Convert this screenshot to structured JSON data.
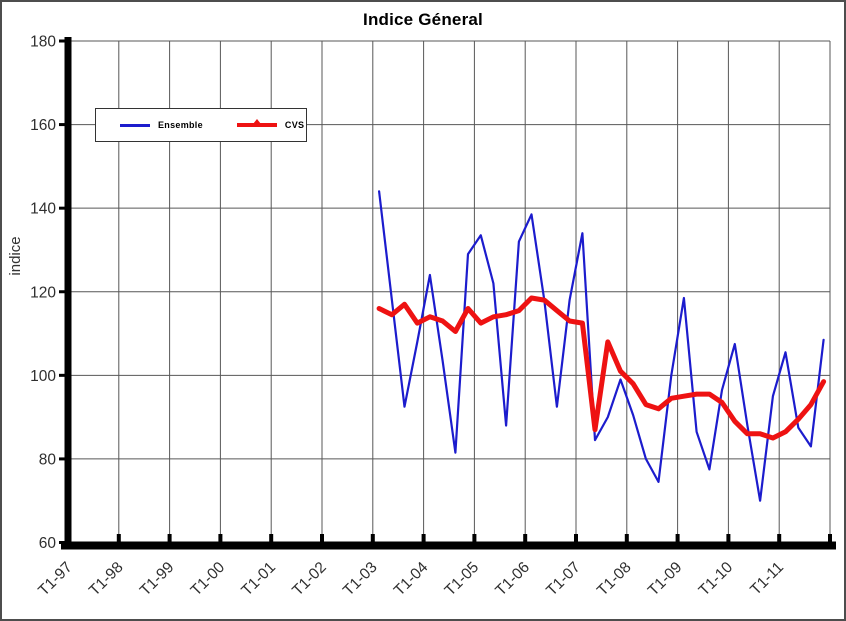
{
  "page": {
    "title": "Indice Géneral"
  },
  "chart_data": {
    "type": "line",
    "title": "Indice Géneral",
    "ylabel": "indice",
    "ylim": [
      60,
      180
    ],
    "y_ticks": [
      180,
      160,
      140,
      120,
      100,
      80,
      60
    ],
    "x_axis_labels": [
      "T1-97",
      "T1-98",
      "T1-99",
      "T1-00",
      "T1-01",
      "T1-02",
      "T1-03",
      "T1-04",
      "T1-05",
      "T1-06",
      "T1-07",
      "T1-08",
      "T1-09",
      "T1-10",
      "T1-11"
    ],
    "x_total_quarters": 60,
    "series_start_quarter": 24,
    "categories": [
      "T1-03",
      "T2-03",
      "T3-03",
      "T4-03",
      "T1-04",
      "T2-04",
      "T3-04",
      "T4-04",
      "T1-05",
      "T2-05",
      "T3-05",
      "T4-05",
      "T1-06",
      "T2-06",
      "T3-06",
      "T4-06",
      "T1-07",
      "T2-07",
      "T3-07",
      "T4-07",
      "T1-08",
      "T2-08",
      "T3-08",
      "T4-08",
      "T1-09",
      "T2-09",
      "T3-09",
      "T4-09",
      "T1-10",
      "T2-10",
      "T3-10",
      "T4-10",
      "T1-11",
      "T2-11",
      "T3-11",
      "T4-11"
    ],
    "series": [
      {
        "name": "Ensemble",
        "color": "#1c1ccd",
        "stroke_width": 2.2,
        "values": [
          144,
          118,
          92.5,
          108,
          124,
          103.5,
          81.5,
          129,
          133.5,
          122,
          88,
          132,
          138.5,
          118,
          92.5,
          118,
          134,
          84.5,
          90,
          99,
          90.5,
          80,
          74.5,
          100,
          118.5,
          86.5,
          77.5,
          96.5,
          107.5,
          88,
          70,
          95,
          105.5,
          87.5,
          83,
          108.5
        ]
      },
      {
        "name": "CVS",
        "color": "#ee1212",
        "stroke_width": 5,
        "values": [
          116,
          114.5,
          117,
          112.5,
          114,
          113,
          110.5,
          116,
          112.5,
          114,
          114.5,
          115.5,
          118.5,
          118,
          115.5,
          113,
          112.5,
          87,
          108,
          101,
          98,
          93,
          92,
          94.5,
          95,
          95.5,
          95.5,
          93.5,
          89,
          86,
          86,
          85,
          86.5,
          89.5,
          93,
          98.5
        ]
      }
    ],
    "grid": true,
    "legend_position": "inside-top-left",
    "grid_color": "#575757",
    "axis_color": "#000000",
    "text_color": "#2f2f2f"
  }
}
